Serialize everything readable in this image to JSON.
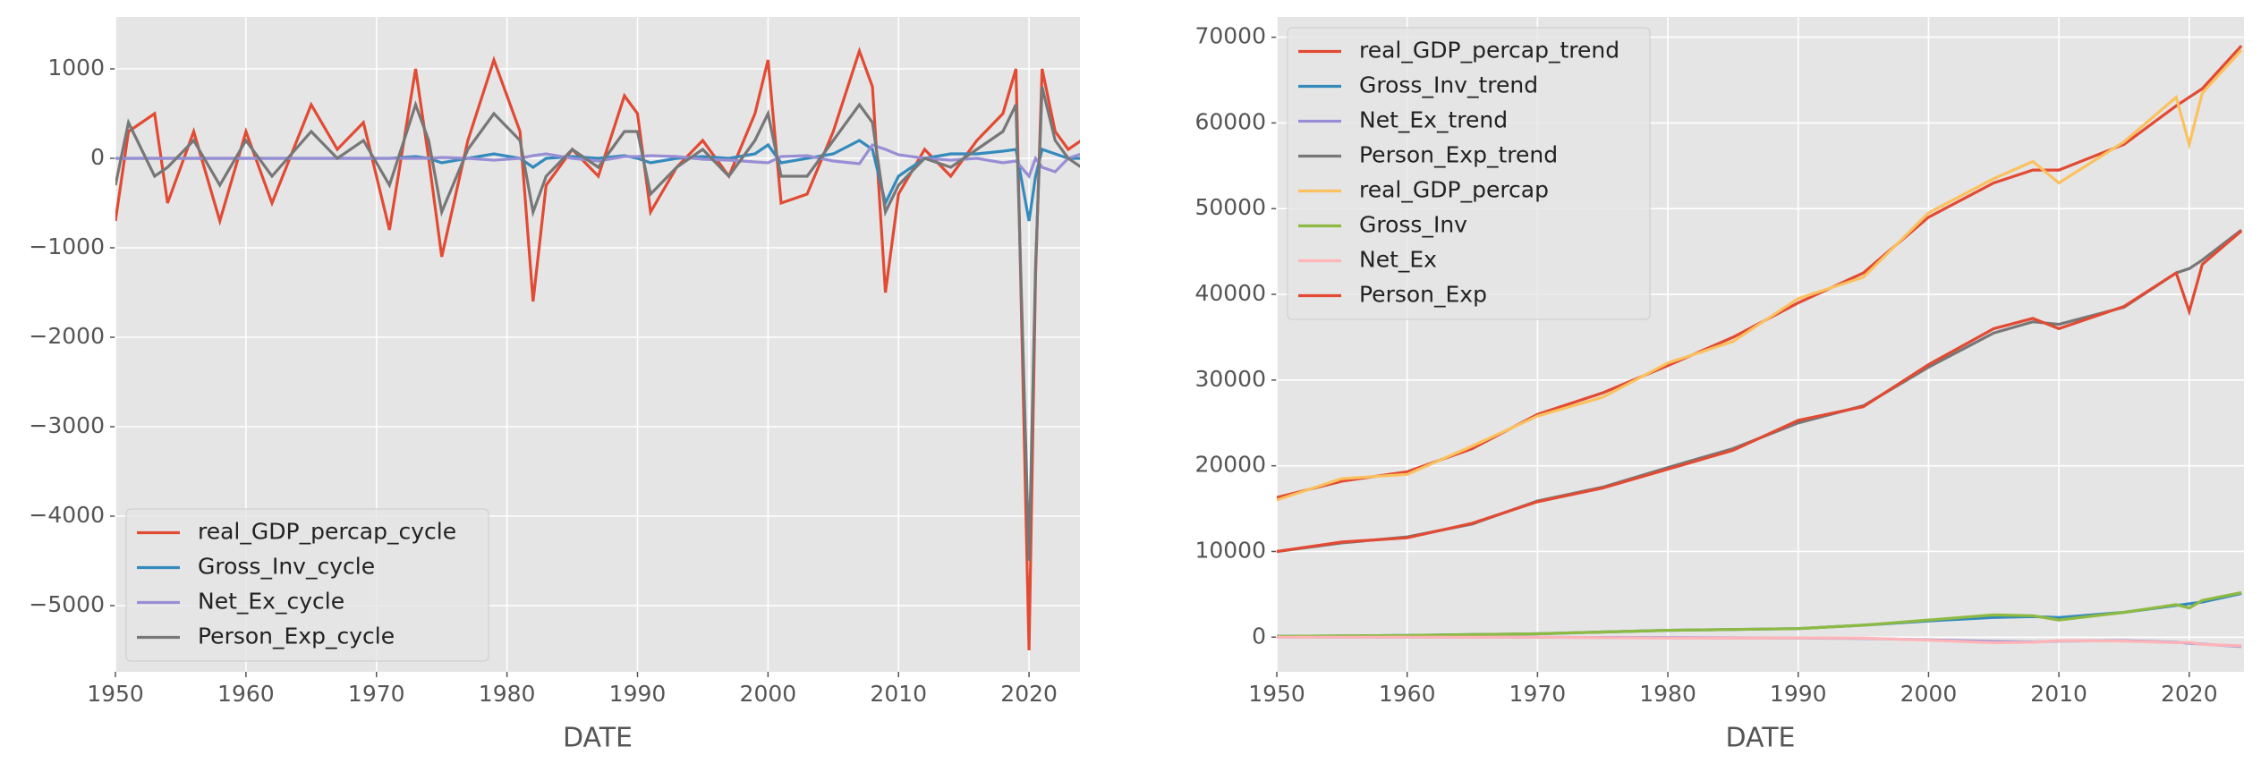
{
  "chart_data": [
    {
      "type": "line",
      "xlabel": "DATE",
      "legend": "lower left",
      "grid": true,
      "xlim": [
        1950,
        2023.9
      ],
      "ylim": [
        -5740,
        1580
      ],
      "xticks": [
        1950,
        1960,
        1970,
        1980,
        1990,
        2000,
        2010,
        2020
      ],
      "yticks": [
        {
          "value": -5000,
          "label": "−5000"
        },
        {
          "value": -4000,
          "label": "−4000"
        },
        {
          "value": -3000,
          "label": "−3000"
        },
        {
          "value": -2000,
          "label": "−2000"
        },
        {
          "value": -1000,
          "label": "−1000"
        },
        0,
        1000
      ],
      "x": [
        1950,
        1951,
        1953,
        1954,
        1956,
        1958,
        1960,
        1962,
        1965,
        1967,
        1969,
        1971,
        1973,
        1974,
        1975,
        1977,
        1979,
        1981,
        1982,
        1983,
        1985,
        1987,
        1989,
        1990,
        1991,
        1993,
        1995,
        1997,
        1999,
        2000,
        2001,
        2003,
        2005,
        2007,
        2008,
        2009,
        2010,
        2012,
        2014,
        2016,
        2018,
        2019,
        2020,
        2020.5,
        2021,
        2022,
        2023,
        2024
      ],
      "series": [
        {
          "name": "real_GDP_percap_cycle",
          "color": "#e24a33",
          "values": [
            -700,
            300,
            500,
            -500,
            300,
            -700,
            300,
            -500,
            600,
            100,
            400,
            -800,
            1000,
            0,
            -1100,
            200,
            1100,
            300,
            -1600,
            -300,
            100,
            -200,
            700,
            500,
            -600,
            -100,
            200,
            -200,
            500,
            1100,
            -500,
            -400,
            300,
            1200,
            800,
            -1500,
            -400,
            100,
            -200,
            200,
            500,
            1000,
            -5500,
            -1300,
            1000,
            300,
            100,
            200
          ]
        },
        {
          "name": "Gross_Inv_cycle",
          "color": "#348abd",
          "values": [
            0,
            0,
            0,
            0,
            0,
            0,
            0,
            0,
            0,
            0,
            0,
            0,
            20,
            0,
            -50,
            0,
            50,
            0,
            -100,
            0,
            20,
            0,
            30,
            0,
            -50,
            0,
            20,
            0,
            50,
            150,
            -50,
            0,
            50,
            200,
            100,
            -500,
            -200,
            0,
            50,
            50,
            80,
            100,
            -700,
            -200,
            100,
            50,
            0,
            0
          ]
        },
        {
          "name": "Net_Ex_cycle",
          "color": "#988ed5",
          "values": [
            0,
            0,
            0,
            0,
            0,
            0,
            0,
            0,
            0,
            0,
            0,
            0,
            0,
            0,
            10,
            0,
            -20,
            0,
            30,
            50,
            0,
            -30,
            20,
            20,
            30,
            20,
            -10,
            -20,
            -40,
            -50,
            20,
            30,
            -30,
            -60,
            150,
            100,
            40,
            0,
            -20,
            0,
            -50,
            -30,
            -200,
            0,
            -100,
            -150,
            0,
            50
          ]
        },
        {
          "name": "Person_Exp_cycle",
          "color": "#777777",
          "values": [
            -300,
            400,
            -200,
            -100,
            200,
            -300,
            200,
            -200,
            300,
            0,
            200,
            -300,
            600,
            200,
            -600,
            100,
            500,
            200,
            -600,
            -200,
            100,
            -100,
            300,
            300,
            -400,
            -100,
            100,
            -200,
            200,
            500,
            -200,
            -200,
            200,
            600,
            400,
            -600,
            -300,
            0,
            -100,
            100,
            300,
            600,
            -4500,
            -1200,
            800,
            200,
            0,
            -100
          ]
        }
      ]
    },
    {
      "type": "line",
      "xlabel": "DATE",
      "legend": "upper left",
      "grid": true,
      "xlim": [
        1950,
        2024.2
      ],
      "ylim": [
        -4040,
        72360
      ],
      "xticks": [
        1950,
        1960,
        1970,
        1980,
        1990,
        2000,
        2010,
        2020
      ],
      "yticks": [
        0,
        10000,
        20000,
        30000,
        40000,
        50000,
        60000,
        70000
      ],
      "x": [
        1950,
        1955,
        1960,
        1965,
        1970,
        1975,
        1980,
        1985,
        1990,
        1995,
        2000,
        2005,
        2008,
        2010,
        2015,
        2019,
        2020,
        2021,
        2024
      ],
      "series": [
        {
          "name": "real_GDP_percap_trend",
          "color": "#e24a33",
          "values": [
            16300,
            18200,
            19300,
            22000,
            26000,
            28500,
            31700,
            35000,
            39000,
            42500,
            49000,
            53000,
            54500,
            54500,
            57500,
            62000,
            63000,
            64000,
            69000
          ]
        },
        {
          "name": "Gross_Inv_trend",
          "color": "#348abd",
          "values": [
            100,
            150,
            200,
            300,
            400,
            600,
            800,
            900,
            1000,
            1400,
            1900,
            2300,
            2400,
            2300,
            2900,
            3700,
            3900,
            4100,
            5100
          ]
        },
        {
          "name": "Net_Ex_trend",
          "color": "#988ed5",
          "values": [
            0,
            0,
            0,
            0,
            -10,
            -30,
            -50,
            -80,
            -100,
            -150,
            -300,
            -500,
            -550,
            -450,
            -400,
            -600,
            -700,
            -800,
            -1100
          ]
        },
        {
          "name": "Person_Exp_trend",
          "color": "#777777",
          "values": [
            10000,
            11000,
            11700,
            13200,
            15900,
            17500,
            19800,
            22000,
            25000,
            27000,
            31500,
            35500,
            36800,
            36500,
            38500,
            42500,
            43000,
            44000,
            47500
          ]
        },
        {
          "name": "real_GDP_percap",
          "color": "#fbc15e",
          "values": [
            16000,
            18500,
            19000,
            22300,
            25800,
            28000,
            32000,
            34500,
            39500,
            42000,
            49500,
            53500,
            55500,
            53000,
            57800,
            63000,
            57500,
            63500,
            68500
          ]
        },
        {
          "name": "Gross_Inv",
          "color": "#8eba42",
          "values": [
            100,
            150,
            200,
            300,
            400,
            600,
            800,
            900,
            1000,
            1400,
            2000,
            2600,
            2500,
            2000,
            2900,
            3800,
            3400,
            4300,
            5200
          ]
        },
        {
          "name": "Net_Ex",
          "color": "#ffb5b8",
          "values": [
            0,
            0,
            0,
            0,
            0,
            -50,
            -100,
            -100,
            -80,
            -100,
            -350,
            -650,
            -600,
            -400,
            -450,
            -650,
            -600,
            -850,
            -1000
          ]
        },
        {
          "name": "Person_Exp",
          "color": "#e24a33",
          "values": [
            10000,
            11100,
            11600,
            13300,
            15800,
            17400,
            19600,
            21800,
            25300,
            26900,
            31800,
            36000,
            37200,
            36000,
            38600,
            42500,
            38000,
            43500,
            47400
          ]
        }
      ]
    }
  ]
}
